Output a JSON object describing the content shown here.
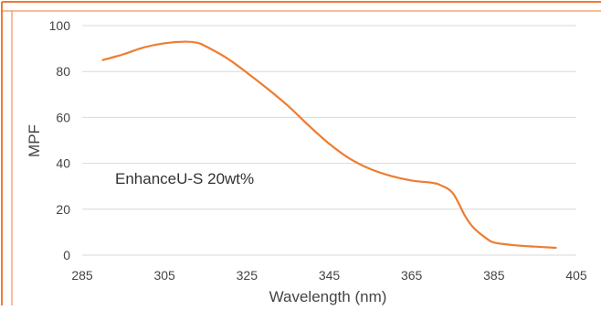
{
  "chart_data": {
    "type": "line",
    "title": "",
    "xlabel": "Wavelength (nm)",
    "ylabel": "MPF",
    "xlim": [
      285,
      405
    ],
    "ylim": [
      0,
      100
    ],
    "xticks": [
      "285",
      "305",
      "325",
      "345",
      "365",
      "385",
      "405"
    ],
    "yticks": [
      "0",
      "20",
      "40",
      "60",
      "80",
      "100"
    ],
    "grid": "horizontal",
    "annotation": "EnhanceU-S 20wt%",
    "series": [
      {
        "color": "#ed7d31",
        "x": [
          290,
          295,
          300,
          305,
          310,
          313,
          315,
          320,
          325,
          330,
          335,
          340,
          345,
          350,
          355,
          360,
          365,
          370,
          372,
          375,
          378,
          380,
          383,
          385,
          390,
          395,
          400
        ],
        "y": [
          85,
          87.5,
          90.5,
          92.3,
          93,
          92.5,
          91,
          86,
          79.5,
          72.5,
          65,
          56.5,
          48.5,
          42,
          37.5,
          34.5,
          32.5,
          31.5,
          30.5,
          27,
          17,
          12,
          7.5,
          5.5,
          4.3,
          3.7,
          3.2
        ]
      }
    ]
  },
  "colors": {
    "frame_border": "#ed7d31",
    "line": "#ed7d31",
    "grid": "#d9d9d9",
    "text": "#444444"
  }
}
